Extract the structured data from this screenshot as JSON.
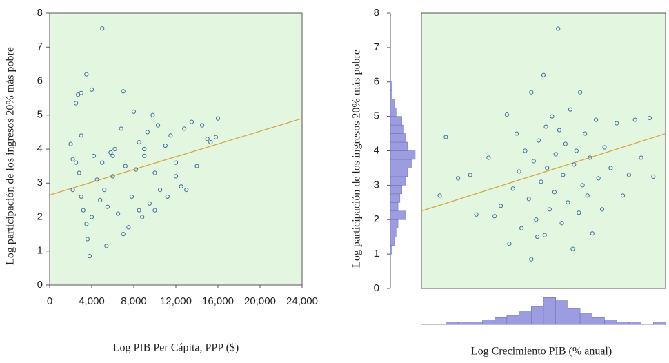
{
  "chart_data": [
    {
      "type": "scatter",
      "xlabel": "Log PIB Per Cápita, PPP ($)",
      "ylabel": "Log participación de los ingresos 20% más pobre",
      "background": "#e2f6e0",
      "label_color": "#5aa84a",
      "point_color": "#3d6f9c",
      "xlim": [
        0,
        24000
      ],
      "ylim": [
        0,
        8
      ],
      "xticks": [
        0,
        {
          "value": 4000,
          "label": "4,000"
        },
        {
          "value": 8000,
          "label": "8,000"
        },
        {
          "value": 12000,
          "label": "12,000"
        },
        {
          "value": 16000,
          "label": "16,000"
        },
        {
          "value": 20000,
          "label": "20,000"
        },
        {
          "value": 24000,
          "label": "24,000"
        }
      ],
      "yticks": [
        0,
        1,
        2,
        3,
        4,
        5,
        6,
        7,
        8
      ],
      "x": [
        2000,
        2200,
        2500,
        2700,
        3000,
        3500,
        4000,
        5000,
        7000,
        2500,
        2800,
        3000,
        3200,
        3500,
        3600,
        3800,
        4000,
        4200,
        4500,
        4800,
        5000,
        5200,
        5400,
        5500,
        5800,
        6000,
        6200,
        6500,
        6800,
        7000,
        7200,
        7500,
        7800,
        8000,
        8200,
        8500,
        8800,
        9000,
        9300,
        9500,
        9800,
        10000,
        10300,
        10500,
        11000,
        11200,
        11500,
        12000,
        12500,
        12800,
        13000,
        13500,
        14000,
        14500,
        15000,
        15300,
        15800,
        16000,
        2200,
        3000,
        6000,
        8500,
        10000,
        12000,
        9000
      ],
      "values": [
        4.15,
        3.7,
        5.35,
        5.6,
        5.65,
        6.2,
        5.75,
        7.55,
        5.7,
        3.6,
        3.3,
        2.6,
        2.2,
        1.8,
        1.35,
        0.85,
        2.0,
        3.8,
        3.1,
        2.5,
        3.6,
        2.8,
        1.15,
        2.3,
        3.9,
        3.2,
        4.0,
        2.1,
        4.6,
        1.5,
        3.5,
        1.7,
        2.6,
        5.1,
        3.4,
        4.2,
        2.0,
        3.8,
        4.5,
        2.4,
        5.0,
        3.3,
        4.7,
        2.8,
        4.1,
        2.6,
        4.4,
        3.6,
        2.9,
        4.6,
        2.8,
        4.8,
        3.5,
        4.7,
        4.3,
        4.2,
        4.35,
        4.9,
        2.8,
        4.4,
        3.8,
        2.2,
        2.2,
        3.2,
        4.0
      ],
      "fit": {
        "x": [
          0,
          24000
        ],
        "values": [
          2.65,
          4.9
        ],
        "color": "#d9a441"
      }
    },
    {
      "type": "scatter",
      "xlabel": "Log Crecimiento PIB (% anual)",
      "ylabel": "Log participación de los ingresos 20% más pobre",
      "background": "#e2f6e0",
      "label_color": "#5aa84a",
      "point_color": "#3d6f9c",
      "xlim": [
        -10,
        10
      ],
      "ylim": [
        0,
        8
      ],
      "yticks": [
        0,
        1,
        2,
        3,
        4,
        5,
        6,
        7,
        8
      ],
      "x": [
        -8.5,
        -7,
        -8,
        -6,
        -5.5,
        -4.5,
        -4,
        -3.5,
        -3,
        -2.8,
        -2.5,
        -2.2,
        -2,
        -1.8,
        -1.5,
        -1.2,
        -1,
        -0.8,
        -0.6,
        -0.4,
        -0.2,
        0,
        0.1,
        0.2,
        0.3,
        0.5,
        0.7,
        0.9,
        1,
        1.2,
        1.3,
        1.5,
        1.6,
        1.8,
        2,
        2.2,
        2.4,
        2.5,
        2.7,
        2.9,
        3,
        3.2,
        3.4,
        3.6,
        3.8,
        4,
        4.3,
        4.5,
        4.8,
        5,
        5.5,
        6,
        6.5,
        7,
        7.5,
        8,
        8.7,
        9,
        -1,
        -0.5
      ],
      "values": [
        2.7,
        3.2,
        4.4,
        3.3,
        2.15,
        3.8,
        2.1,
        2.4,
        5.05,
        1.3,
        2.9,
        4.5,
        3.4,
        1.75,
        4.0,
        2.6,
        5.7,
        3.7,
        2.0,
        4.3,
        3.1,
        6.2,
        1.55,
        4.7,
        3.5,
        2.3,
        5.0,
        2.8,
        3.9,
        7.55,
        4.6,
        1.9,
        3.3,
        4.2,
        2.5,
        5.2,
        1.15,
        3.6,
        4.0,
        2.2,
        5.7,
        3.0,
        4.5,
        2.7,
        3.8,
        1.6,
        4.9,
        3.2,
        2.3,
        4.1,
        3.5,
        4.8,
        2.7,
        3.3,
        4.9,
        3.8,
        4.95,
        3.25,
        0.85,
        1.5
      ],
      "fit": {
        "x": [
          -10,
          10
        ],
        "values": [
          2.25,
          4.5
        ],
        "color": "#d9a441"
      },
      "hist_color": "#9c9ce0",
      "y_hist": {
        "bins": [
          1,
          1.25,
          1.5,
          1.75,
          2,
          2.25,
          2.5,
          2.75,
          3,
          3.25,
          3.5,
          3.75,
          4,
          4.25,
          4.5,
          4.75,
          5,
          5.25,
          5.5,
          5.75,
          6
        ],
        "counts": [
          1,
          2,
          3,
          4,
          8,
          4,
          5,
          6,
          8,
          9,
          11,
          13,
          9,
          8,
          7,
          6,
          3,
          2,
          1,
          1
        ],
        "lim": [
          0,
          13
        ]
      },
      "x_hist": {
        "bins": [
          -10,
          -9,
          -8,
          -7,
          -6,
          -5,
          -4,
          -3,
          -2,
          -1,
          0,
          1,
          2,
          3,
          4,
          5,
          6,
          7,
          8,
          9,
          10
        ],
        "counts": [
          0,
          0,
          1,
          1,
          1,
          2,
          3,
          4,
          6,
          8,
          12,
          11,
          7,
          5,
          3,
          2,
          1,
          1,
          0,
          1
        ],
        "lim": [
          0,
          13
        ]
      }
    }
  ]
}
